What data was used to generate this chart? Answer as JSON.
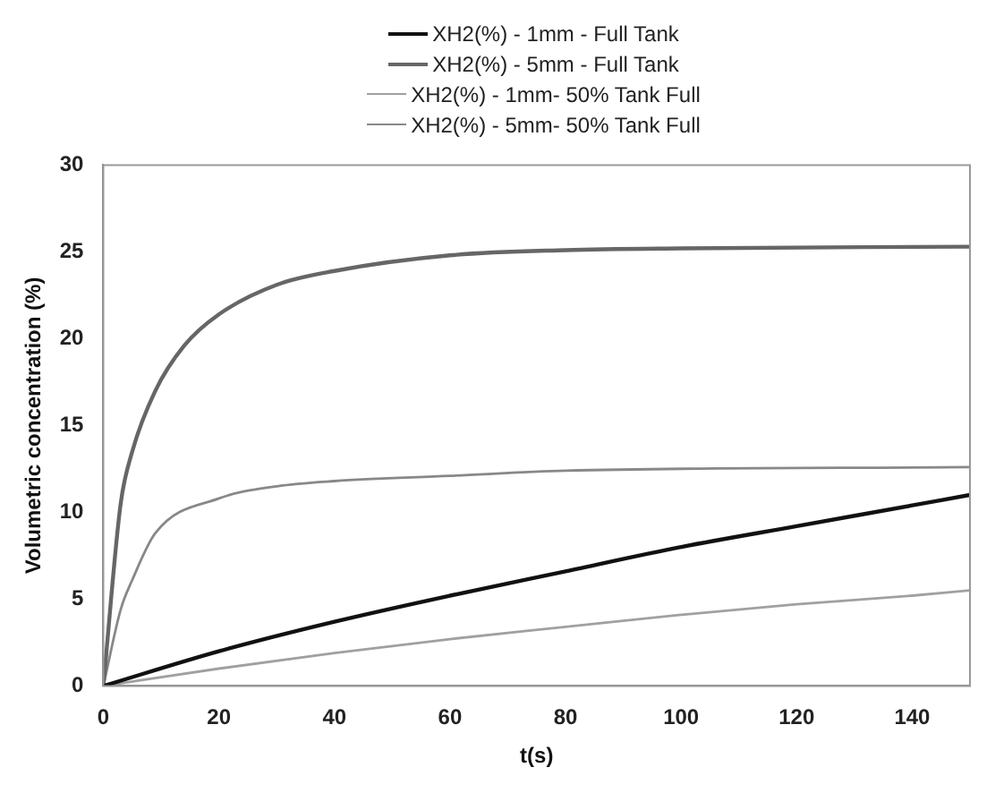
{
  "chart_data": {
    "type": "line",
    "xlabel": "t(s)",
    "ylabel": "Volumetric concentration (%)",
    "xlim": [
      0,
      150
    ],
    "xticks": [
      0,
      20,
      40,
      60,
      80,
      100,
      120,
      140
    ],
    "ylim": [
      0,
      30
    ],
    "yticks": [
      0,
      5,
      10,
      15,
      20,
      25,
      30
    ],
    "grid": false,
    "legend": "top",
    "marker": "none",
    "line_style": "solid",
    "series": [
      {
        "name": "XH2(%) - 1mm - Full Tank",
        "color": "#111111",
        "x": [
          0,
          20,
          40,
          60,
          80,
          100,
          120,
          140,
          150
        ],
        "values": [
          0,
          2.0,
          3.7,
          5.2,
          6.6,
          8.0,
          9.2,
          10.4,
          11.0
        ]
      },
      {
        "name": "XH2(%) - 5mm - Full Tank",
        "color": "#666666",
        "x": [
          0,
          3,
          5,
          9,
          14,
          20,
          30,
          40,
          60,
          80,
          100,
          150
        ],
        "values": [
          0,
          10.5,
          13.5,
          17.0,
          19.6,
          21.4,
          23.1,
          23.9,
          24.8,
          25.1,
          25.2,
          25.3
        ]
      },
      {
        "name": "XH2(%) - 1mm- 50% Tank Full",
        "color": "#a0a0a0",
        "x": [
          0,
          20,
          40,
          60,
          80,
          100,
          120,
          140,
          150
        ],
        "values": [
          0,
          1.0,
          1.9,
          2.7,
          3.4,
          4.1,
          4.7,
          5.2,
          5.5
        ]
      },
      {
        "name": "XH2(%) - 5mm- 50% Tank Full",
        "color": "#888888",
        "x": [
          0,
          3,
          5,
          9,
          20,
          30,
          40,
          60,
          80,
          150
        ],
        "values": [
          0,
          4.4,
          6.1,
          8.8,
          10.8,
          11.5,
          11.8,
          12.1,
          12.4,
          12.6
        ]
      }
    ]
  }
}
